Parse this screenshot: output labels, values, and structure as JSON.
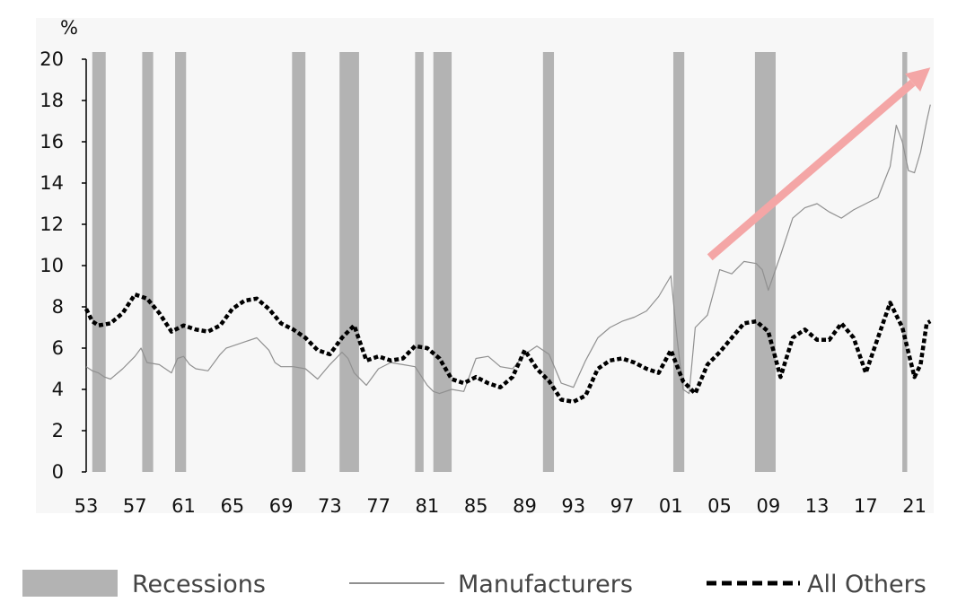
{
  "chart_data": {
    "type": "line",
    "ylabel": "%",
    "ylim": [
      0,
      20
    ],
    "y_ticks": [
      0,
      2,
      4,
      6,
      8,
      10,
      12,
      14,
      16,
      18,
      20
    ],
    "xlim": [
      1953,
      2022.5
    ],
    "x_ticks": [
      "53",
      "57",
      "61",
      "65",
      "69",
      "73",
      "77",
      "81",
      "85",
      "89",
      "93",
      "97",
      "01",
      "05",
      "09",
      "13",
      "17",
      "21"
    ],
    "x_tick_years": [
      1953,
      1957,
      1961,
      1965,
      1969,
      1973,
      1977,
      1981,
      1985,
      1989,
      1993,
      1997,
      2001,
      2005,
      2009,
      2013,
      2017,
      2021
    ],
    "grid": false,
    "legend_placement": "bottom",
    "recessions": [
      [
        1953.5,
        1954.6
      ],
      [
        1957.6,
        1958.5
      ],
      [
        1960.3,
        1961.2
      ],
      [
        1969.9,
        1971.0
      ],
      [
        1973.8,
        1975.4
      ],
      [
        1980.0,
        1980.7
      ],
      [
        1981.5,
        1983.0
      ],
      [
        1990.5,
        1991.4
      ],
      [
        2001.2,
        2002.1
      ],
      [
        2007.9,
        2009.6
      ],
      [
        2020.0,
        2020.4
      ]
    ],
    "series": [
      {
        "name": "Manufacturers",
        "color": "#909090",
        "style": "solid",
        "x": [
          1953,
          1953.5,
          1954,
          1954.5,
          1955,
          1956,
          1957,
          1957.5,
          1958,
          1959,
          1959.5,
          1960,
          1960.5,
          1961,
          1961.5,
          1962,
          1963,
          1964,
          1964.5,
          1965,
          1966,
          1967,
          1968,
          1968.5,
          1969,
          1970,
          1971,
          1972,
          1973,
          1974,
          1974.5,
          1975,
          1976,
          1977,
          1978,
          1979,
          1980,
          1981,
          1981.5,
          1982,
          1983,
          1984,
          1985,
          1986,
          1987,
          1988,
          1989,
          1990,
          1991,
          1992,
          1993,
          1994,
          1995,
          1996,
          1997,
          1998,
          1999,
          2000,
          2001,
          2001.5,
          2002,
          2002.5,
          2003,
          2004,
          2005,
          2006,
          2007,
          2008,
          2008.5,
          2009,
          2010,
          2011,
          2012,
          2013,
          2014,
          2015,
          2016,
          2017,
          2018,
          2019,
          2019.5,
          2020,
          2020.5,
          2021,
          2021.5,
          2022,
          2022.3
        ],
        "y": [
          5.1,
          4.9,
          4.8,
          4.6,
          4.5,
          5.0,
          5.6,
          6.0,
          5.3,
          5.2,
          5.0,
          4.8,
          5.5,
          5.6,
          5.2,
          5.0,
          4.9,
          5.7,
          6.0,
          6.1,
          6.3,
          6.5,
          5.9,
          5.3,
          5.1,
          5.1,
          5.0,
          4.5,
          5.2,
          5.8,
          5.5,
          4.8,
          4.2,
          5.0,
          5.3,
          5.2,
          5.1,
          4.2,
          3.9,
          3.8,
          4.0,
          3.9,
          5.5,
          5.6,
          5.1,
          5.0,
          5.7,
          6.1,
          5.7,
          4.3,
          4.1,
          5.4,
          6.5,
          7.0,
          7.3,
          7.5,
          7.8,
          8.5,
          9.5,
          6.5,
          4.0,
          3.8,
          7.0,
          7.6,
          9.8,
          9.6,
          10.2,
          10.1,
          9.8,
          8.8,
          10.5,
          12.3,
          12.8,
          13.0,
          12.6,
          12.3,
          12.7,
          13.0,
          13.3,
          14.8,
          16.8,
          16.0,
          14.6,
          14.5,
          15.5,
          17.0,
          17.8
        ]
      },
      {
        "name": "All Others",
        "color": "#000000",
        "style": "dashed",
        "x": [
          1953,
          1953.5,
          1954,
          1955,
          1956,
          1957,
          1958,
          1959,
          1960,
          1961,
          1962,
          1963,
          1964,
          1965,
          1966,
          1967,
          1968,
          1969,
          1970,
          1971,
          1972,
          1973,
          1974,
          1975,
          1976,
          1977,
          1978,
          1979,
          1980,
          1981,
          1982,
          1983,
          1984,
          1985,
          1986,
          1987,
          1988,
          1989,
          1990,
          1991,
          1992,
          1993,
          1994,
          1995,
          1996,
          1997,
          1998,
          1999,
          2000,
          2001,
          2002,
          2003,
          2004,
          2005,
          2006,
          2007,
          2008,
          2009,
          2010,
          2011,
          2012,
          2013,
          2014,
          2015,
          2016,
          2017,
          2018,
          2019,
          2020,
          2021,
          2021.5,
          2022,
          2022.3
        ],
        "y": [
          7.9,
          7.3,
          7.1,
          7.2,
          7.7,
          8.6,
          8.4,
          7.7,
          6.8,
          7.1,
          6.9,
          6.8,
          7.1,
          7.9,
          8.3,
          8.4,
          7.9,
          7.2,
          6.9,
          6.5,
          5.9,
          5.7,
          6.5,
          7.1,
          5.4,
          5.6,
          5.4,
          5.5,
          6.1,
          6.0,
          5.5,
          4.5,
          4.3,
          4.6,
          4.3,
          4.1,
          4.6,
          5.9,
          5.0,
          4.4,
          3.5,
          3.4,
          3.7,
          5.0,
          5.4,
          5.5,
          5.3,
          5.0,
          4.8,
          5.9,
          4.4,
          3.8,
          5.2,
          5.8,
          6.5,
          7.2,
          7.3,
          6.8,
          4.6,
          6.5,
          6.9,
          6.4,
          6.4,
          7.2,
          6.5,
          4.8,
          6.5,
          8.2,
          7.0,
          4.6,
          5.2,
          7.2,
          7.3
        ]
      }
    ],
    "annotation": {
      "type": "arrow",
      "color": "#f4a6a6",
      "from": [
        2004.2,
        10.4
      ],
      "to": [
        2022.3,
        19.6
      ]
    },
    "legend": [
      {
        "name": "Recessions",
        "label": "Recessions",
        "swatch": "bar",
        "color": "#b3b3b3"
      },
      {
        "name": "Manufacturers",
        "label": "Manufacturers",
        "swatch": "line",
        "color": "#909090"
      },
      {
        "name": "All Others",
        "label": "All Others",
        "swatch": "dashed",
        "color": "#000000"
      }
    ]
  }
}
